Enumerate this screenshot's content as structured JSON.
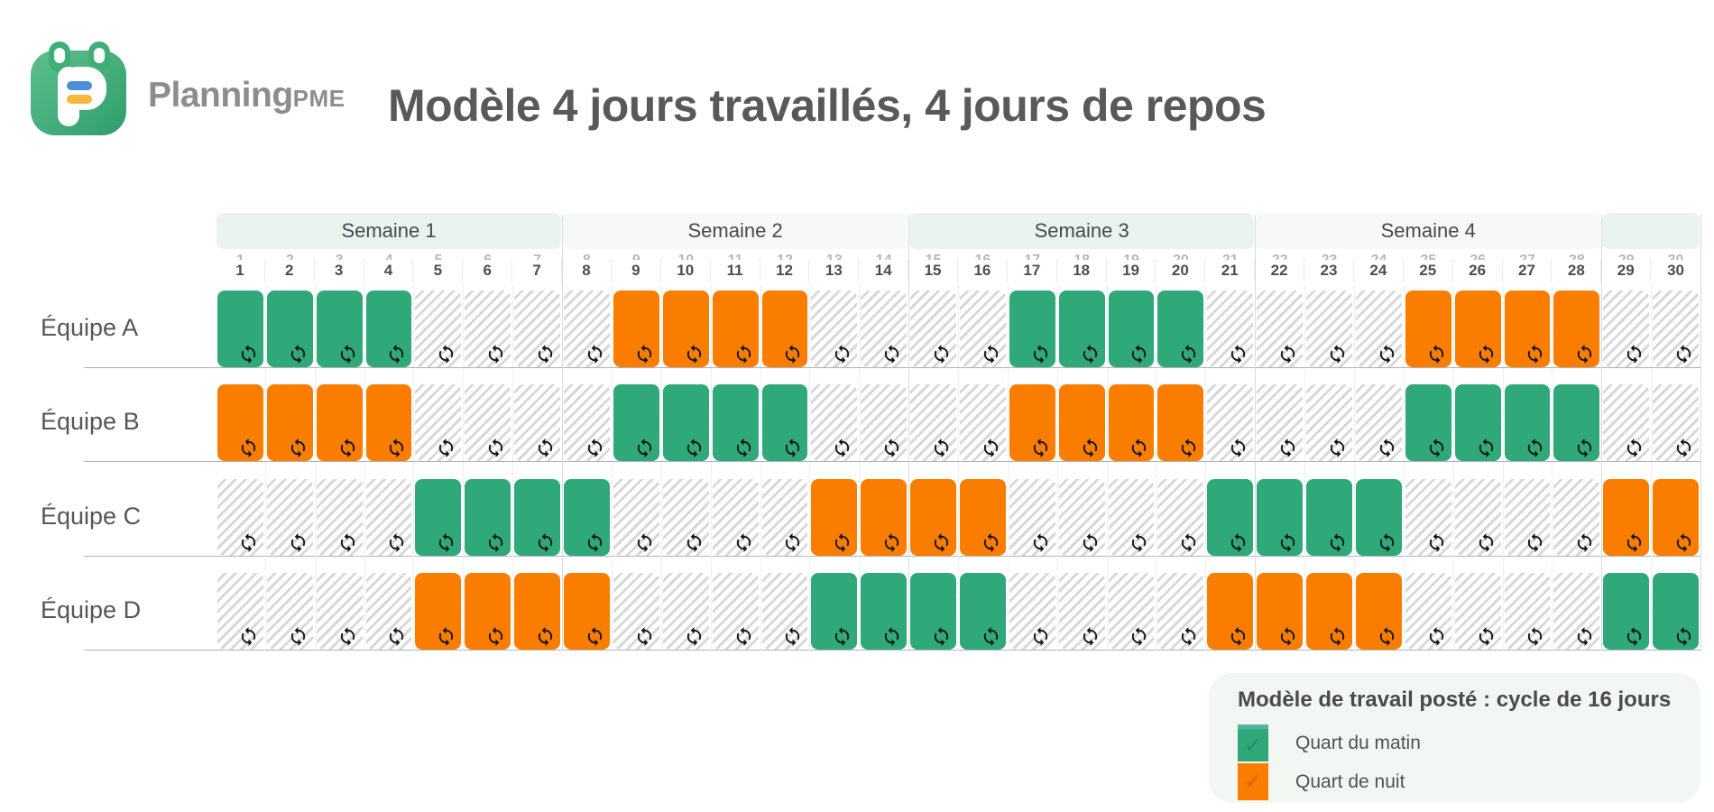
{
  "brand": {
    "name": "PlanningPME",
    "wordmark_main": "Planning",
    "wordmark_suffix": "PME"
  },
  "page_title": "Modèle 4 jours travaillés, 4 jours de repos",
  "weeks": [
    {
      "label": "Semaine 1",
      "start": 1,
      "end": 7,
      "tint": "green"
    },
    {
      "label": "Semaine 2",
      "start": 8,
      "end": 14,
      "tint": "plain"
    },
    {
      "label": "Semaine 3",
      "start": 15,
      "end": 21,
      "tint": "green"
    },
    {
      "label": "Semaine 4",
      "start": 22,
      "end": 28,
      "tint": "plain"
    },
    {
      "label": "",
      "start": 29,
      "end": 30,
      "tint": "green"
    }
  ],
  "days": [
    1,
    2,
    3,
    4,
    5,
    6,
    7,
    8,
    9,
    10,
    11,
    12,
    13,
    14,
    15,
    16,
    17,
    18,
    19,
    20,
    21,
    22,
    23,
    24,
    25,
    26,
    27,
    28,
    29,
    30
  ],
  "teams": [
    {
      "label": "Équipe A",
      "pattern": "MMMMRRRRNNNNRRRRMMMMRRRRNNNNRR"
    },
    {
      "label": "Équipe B",
      "pattern": "NNNNRRRRMMMMRRRRNNNNRRRRMMMMRR"
    },
    {
      "label": "Équipe C",
      "pattern": "RRRRMMMMRRRRNNNNRRRRMMMMRRRRNN"
    },
    {
      "label": "Équipe D",
      "pattern": "RRRRNNNNRRRRMMMMRRRRNNNNRRRRMM"
    }
  ],
  "legend": {
    "title": "Modèle de travail posté : cycle de 16 jours",
    "items": [
      {
        "label": "Quart du matin",
        "key": "M",
        "color": "#2fa87a"
      },
      {
        "label": "Quart de nuit",
        "key": "N",
        "color": "#fa7d00"
      }
    ]
  },
  "icons": {
    "cell_icon": "repeat-icon",
    "check_glyph": "✓"
  },
  "colors": {
    "morning": "#2fa87a",
    "night": "#fa7d00",
    "rest_hatch_stripe": "#d8d8d8",
    "week_band_green": "#e9f4ee",
    "week_band_plain": "#f6f9f7",
    "title_text": "#58595b",
    "logo_green": "#3fae77"
  },
  "chart_data": {
    "type": "heatmap",
    "title": "Modèle 4 jours travaillés, 4 jours de repos",
    "x": [
      1,
      2,
      3,
      4,
      5,
      6,
      7,
      8,
      9,
      10,
      11,
      12,
      13,
      14,
      15,
      16,
      17,
      18,
      19,
      20,
      21,
      22,
      23,
      24,
      25,
      26,
      27,
      28,
      29,
      30
    ],
    "x_groups": [
      {
        "label": "Semaine 1",
        "from": 1,
        "to": 7
      },
      {
        "label": "Semaine 2",
        "from": 8,
        "to": 14
      },
      {
        "label": "Semaine 3",
        "from": 15,
        "to": 21
      },
      {
        "label": "Semaine 4",
        "from": 22,
        "to": 28
      },
      {
        "label": "",
        "from": 29,
        "to": 30
      }
    ],
    "categories": [
      "Équipe A",
      "Équipe B",
      "Équipe C",
      "Équipe D"
    ],
    "series": [
      {
        "name": "Équipe A",
        "values": [
          "M",
          "M",
          "M",
          "M",
          "R",
          "R",
          "R",
          "R",
          "N",
          "N",
          "N",
          "N",
          "R",
          "R",
          "R",
          "R",
          "M",
          "M",
          "M",
          "M",
          "R",
          "R",
          "R",
          "R",
          "N",
          "N",
          "N",
          "N",
          "R",
          "R"
        ]
      },
      {
        "name": "Équipe B",
        "values": [
          "N",
          "N",
          "N",
          "N",
          "R",
          "R",
          "R",
          "R",
          "M",
          "M",
          "M",
          "M",
          "R",
          "R",
          "R",
          "R",
          "N",
          "N",
          "N",
          "N",
          "R",
          "R",
          "R",
          "R",
          "M",
          "M",
          "M",
          "M",
          "R",
          "R"
        ]
      },
      {
        "name": "Équipe C",
        "values": [
          "R",
          "R",
          "R",
          "R",
          "M",
          "M",
          "M",
          "M",
          "R",
          "R",
          "R",
          "R",
          "N",
          "N",
          "N",
          "N",
          "R",
          "R",
          "R",
          "R",
          "M",
          "M",
          "M",
          "M",
          "R",
          "R",
          "R",
          "R",
          "N",
          "N"
        ]
      },
      {
        "name": "Équipe D",
        "values": [
          "R",
          "R",
          "R",
          "R",
          "N",
          "N",
          "N",
          "N",
          "R",
          "R",
          "R",
          "R",
          "M",
          "M",
          "M",
          "M",
          "R",
          "R",
          "R",
          "R",
          "N",
          "N",
          "N",
          "N",
          "R",
          "R",
          "R",
          "R",
          "M",
          "M"
        ]
      }
    ],
    "value_labels": {
      "M": "Quart du matin",
      "N": "Quart de nuit",
      "R": "Repos (hachuré)"
    },
    "value_colors": {
      "M": "#2fa87a",
      "N": "#fa7d00",
      "R": "hatched"
    },
    "legend_title": "Modèle de travail posté : cycle de 16 jours",
    "legend_position": "bottom-right",
    "grid": "dotted-columns, week-boundary-lines"
  }
}
